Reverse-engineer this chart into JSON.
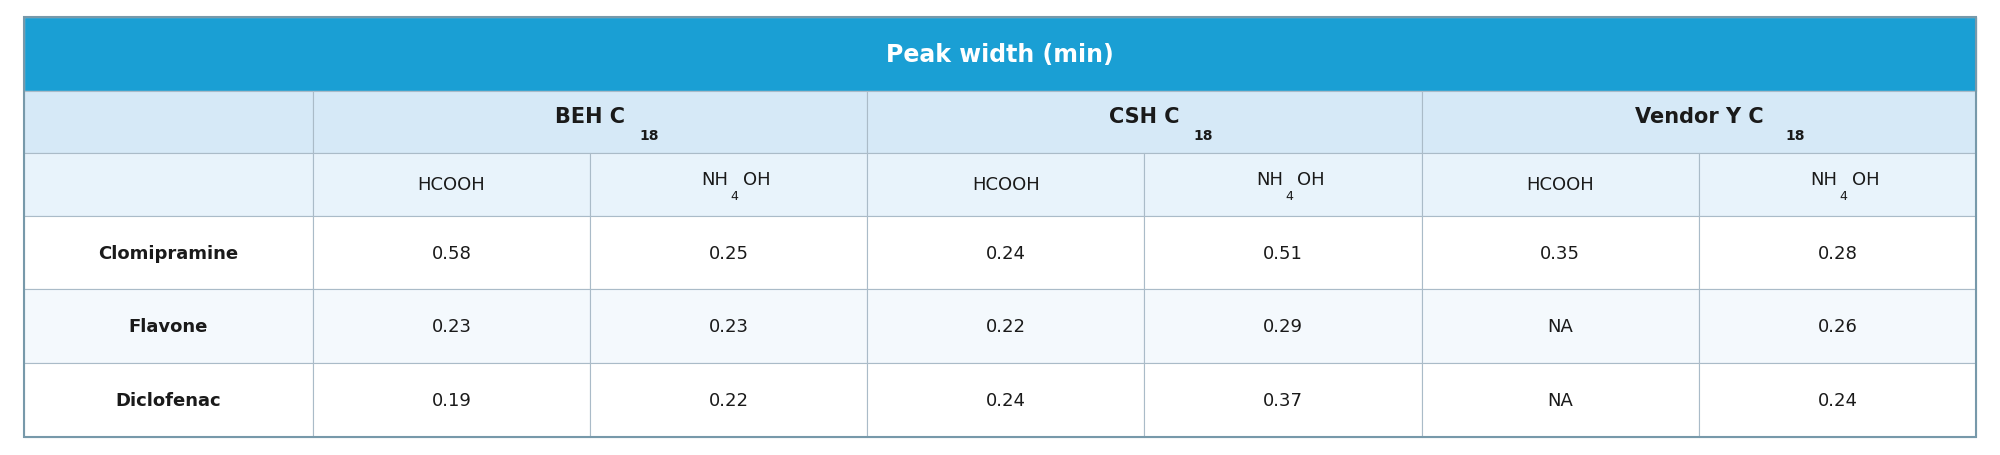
{
  "title": "Peak width (min)",
  "title_bg": "#1A9FD4",
  "title_color": "#FFFFFF",
  "header1_bg": "#D6E9F7",
  "header2_bg": "#E8F3FB",
  "data_bg_alt": "#F4F9FD",
  "data_bg_norm": "#FFFFFF",
  "border_color": "#AABBC8",
  "text_color": "#1A1A1A",
  "col_groups": [
    {
      "label": "BEH C",
      "sub": "18"
    },
    {
      "label": "CSH C",
      "sub": "18"
    },
    {
      "label": "Vendor Y C",
      "sub": "18"
    }
  ],
  "sub_headers": [
    "HCOOH",
    "NH4OH",
    "HCOOH",
    "NH4OH",
    "HCOOH",
    "NH4OH"
  ],
  "rows": [
    {
      "label": "Clomipramine",
      "values": [
        "0.58",
        "0.25",
        "0.24",
        "0.51",
        "0.35",
        "0.28"
      ]
    },
    {
      "label": "Flavone",
      "values": [
        "0.23",
        "0.23",
        "0.22",
        "0.29",
        "NA",
        "0.26"
      ]
    },
    {
      "label": "Diclofenac",
      "values": [
        "0.19",
        "0.22",
        "0.24",
        "0.37",
        "NA",
        "0.24"
      ]
    }
  ],
  "figsize": [
    20.0,
    4.56
  ],
  "dpi": 100
}
